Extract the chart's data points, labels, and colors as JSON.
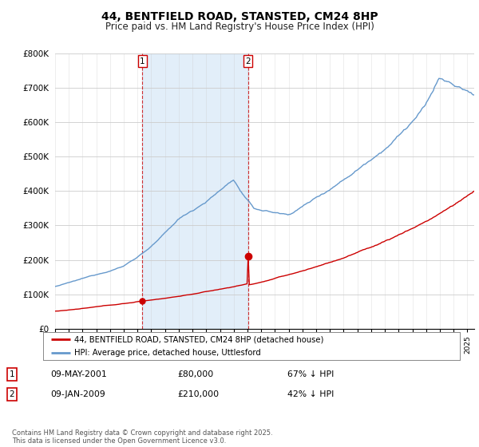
{
  "title": "44, BENTFIELD ROAD, STANSTED, CM24 8HP",
  "subtitle": "Price paid vs. HM Land Registry's House Price Index (HPI)",
  "ylim": [
    0,
    800000
  ],
  "yticks": [
    0,
    100000,
    200000,
    300000,
    400000,
    500000,
    600000,
    700000,
    800000
  ],
  "ytick_labels": [
    "£0",
    "£100K",
    "£200K",
    "£300K",
    "£400K",
    "£500K",
    "£600K",
    "£700K",
    "£800K"
  ],
  "xlim_start": 1995.0,
  "xlim_end": 2025.5,
  "hpi_line_color": "#6699cc",
  "hpi_fill_color": "#d0e4f5",
  "property_color": "#cc0000",
  "shade_x1": 2001.36,
  "shade_x2": 2009.03,
  "sale1_date": 2001.36,
  "sale1_price": 80000,
  "sale2_date": 2009.03,
  "sale2_price": 210000,
  "legend_property": "44, BENTFIELD ROAD, STANSTED, CM24 8HP (detached house)",
  "legend_hpi": "HPI: Average price, detached house, Uttlesford",
  "annotation1_date": "09-MAY-2001",
  "annotation1_price": "£80,000",
  "annotation1_hpi": "67% ↓ HPI",
  "annotation2_date": "09-JAN-2009",
  "annotation2_price": "£210,000",
  "annotation2_hpi": "42% ↓ HPI",
  "footer": "Contains HM Land Registry data © Crown copyright and database right 2025.\nThis data is licensed under the Open Government Licence v3.0.",
  "title_fontsize": 10,
  "subtitle_fontsize": 8.5
}
